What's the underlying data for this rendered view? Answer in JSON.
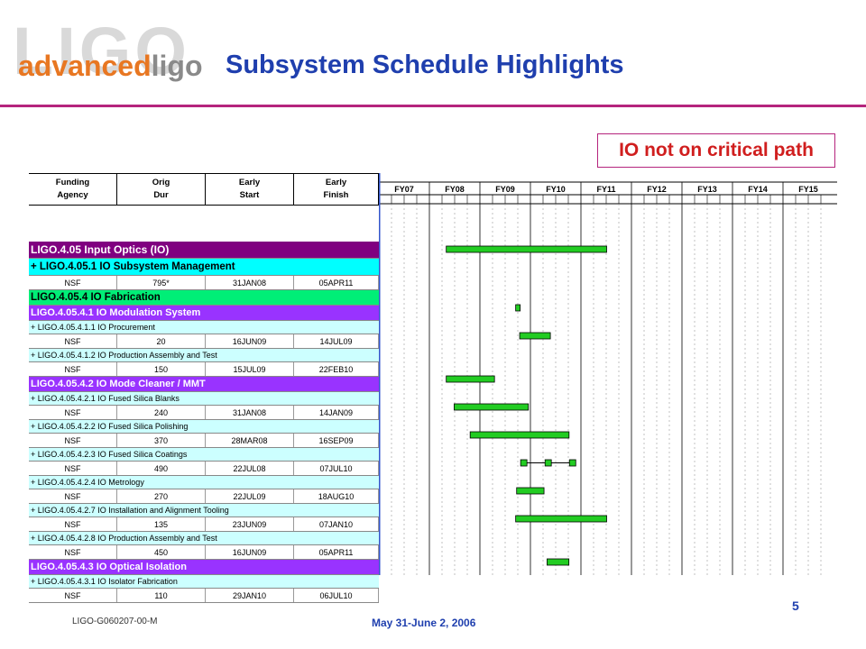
{
  "logo": {
    "bg_text": "LIGO",
    "advanced": "advanced",
    "ligo": "ligo"
  },
  "title": "Subsystem Schedule Highlights",
  "callout": "IO not on critical path",
  "table": {
    "headers": [
      "Funding\nAgency",
      "Orig\nDur",
      "Early\nStart",
      "Early\nFinish"
    ],
    "rows": [
      {
        "type": "level1",
        "label": "LIGO.4.05  Input Optics (IO)"
      },
      {
        "type": "level2",
        "label": "+ LIGO.4.05.1  IO Subsystem Management"
      },
      {
        "type": "data",
        "cells": [
          "NSF",
          "795*",
          "31JAN08",
          "05APR11"
        ],
        "bar": {
          "start": "2008-01-31",
          "finish": "2011-04-05"
        }
      },
      {
        "type": "level3",
        "label": "LIGO.4.05.4  IO Fabrication"
      },
      {
        "type": "level4",
        "label": "LIGO.4.05.4.1  IO Modulation System"
      },
      {
        "type": "task",
        "label": "+ LIGO.4.05.4.1.1  IO Procurement"
      },
      {
        "type": "data",
        "cells": [
          "NSF",
          "20",
          "16JUN09",
          "14JUL09"
        ],
        "bar": {
          "start": "2009-06-16",
          "finish": "2009-07-14"
        }
      },
      {
        "type": "task",
        "label": "+ LIGO.4.05.4.1.2  IO Production Assembly and Test"
      },
      {
        "type": "data",
        "cells": [
          "NSF",
          "150",
          "15JUL09",
          "22FEB10"
        ],
        "bar": {
          "start": "2009-07-15",
          "finish": "2010-02-22"
        }
      },
      {
        "type": "level4",
        "label": "LIGO.4.05.4.2  IO Mode Cleaner / MMT"
      },
      {
        "type": "task",
        "label": "+ LIGO.4.05.4.2.1  IO Fused Silica Blanks"
      },
      {
        "type": "data",
        "cells": [
          "NSF",
          "240",
          "31JAN08",
          "14JAN09"
        ],
        "bar": {
          "start": "2008-01-31",
          "finish": "2009-01-14"
        }
      },
      {
        "type": "task",
        "label": "+ LIGO.4.05.4.2.2  IO Fused Silica Polishing"
      },
      {
        "type": "data",
        "cells": [
          "NSF",
          "370",
          "28MAR08",
          "16SEP09"
        ],
        "bar": {
          "start": "2008-03-28",
          "finish": "2009-09-16"
        }
      },
      {
        "type": "task",
        "label": "+ LIGO.4.05.4.2.3  IO Fused Silica Coatings"
      },
      {
        "type": "data",
        "cells": [
          "NSF",
          "490",
          "22JUL08",
          "07JUL10"
        ],
        "bar": {
          "start": "2008-07-22",
          "finish": "2010-07-07"
        }
      },
      {
        "type": "task",
        "label": "+ LIGO.4.05.4.2.4  IO Metrology"
      },
      {
        "type": "data",
        "cells": [
          "NSF",
          "270",
          "22JUL09",
          "18AUG10"
        ],
        "bar": {
          "start": "2009-07-22",
          "finish": "2010-08-18",
          "split": true
        }
      },
      {
        "type": "task",
        "label": "+ LIGO.4.05.4.2.7  IO Installation and Alignment Tooling"
      },
      {
        "type": "data",
        "cells": [
          "NSF",
          "135",
          "23JUN09",
          "07JAN10"
        ],
        "bar": {
          "start": "2009-06-23",
          "finish": "2010-01-07"
        }
      },
      {
        "type": "task",
        "label": "+ LIGO.4.05.4.2.8  IO Production Assembly and Test"
      },
      {
        "type": "data",
        "cells": [
          "NSF",
          "450",
          "16JUN09",
          "05APR11"
        ],
        "bar": {
          "start": "2009-06-16",
          "finish": "2011-04-05"
        }
      },
      {
        "type": "level4",
        "label": "LIGO.4.05.4.3  IO Optical Isolation"
      },
      {
        "type": "task",
        "label": "+ LIGO.4.05.4.3.1  IO Isolator Fabrication"
      },
      {
        "type": "data",
        "cells": [
          "NSF",
          "110",
          "29JAN10",
          "06JUL10"
        ],
        "bar": {
          "start": "2010-01-29",
          "finish": "2010-07-06"
        }
      }
    ]
  },
  "gantt": {
    "fiscal_years": [
      "FY07",
      "FY08",
      "FY09",
      "FY10",
      "FY11",
      "FY12",
      "FY13",
      "FY14",
      "FY15"
    ],
    "bar_color": "#22cc22"
  },
  "footer": {
    "doc_id": "LIGO-G060207-00-M",
    "date": "May 31-June 2, 2006",
    "page": "5"
  },
  "colors": {
    "level1": "#800080",
    "level2": "#00ffff",
    "level3": "#00ee77",
    "level4": "#9933ff",
    "task": "#ccffff",
    "data": "#ffffff"
  }
}
